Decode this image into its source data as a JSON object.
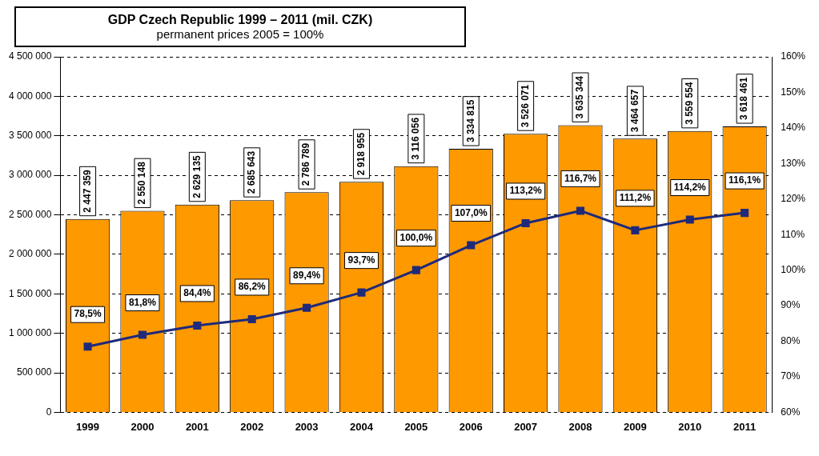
{
  "chart_data": {
    "type": "bar",
    "title": "GDP Czech Republic 1999 – 2011 (mil. CZK)",
    "subtitle": "permanent prices 2005 = 100%",
    "categories": [
      "1999",
      "2000",
      "2001",
      "2002",
      "2003",
      "2004",
      "2005",
      "2006",
      "2007",
      "2008",
      "2009",
      "2010",
      "2011"
    ],
    "series": [
      {
        "color": "#ff9900",
        "values": [
          2447359,
          2550148,
          2629135,
          2685643,
          2786789,
          2918955,
          3116056,
          3334815,
          3526071,
          3635344,
          3464657,
          3559554,
          3618461
        ],
        "value_labels": [
          "2 447 359",
          "2 550 148",
          "2 629 135",
          "2 685 643",
          "2 786 789",
          "2 918 955",
          "3 116 056",
          "3 334 815",
          "3 526 071",
          "3 635 344",
          "3 464 657",
          "3 559 554",
          "3 618 461"
        ]
      },
      {
        "type": "line",
        "axis": "y2",
        "color": "#1f2a7a",
        "marker": "square",
        "values": [
          78.5,
          81.8,
          84.4,
          86.2,
          89.4,
          93.7,
          100.0,
          107.0,
          113.2,
          116.7,
          111.2,
          114.2,
          116.1
        ],
        "value_labels": [
          "78,5%",
          "81,8%",
          "84,4%",
          "86,2%",
          "89,4%",
          "93,7%",
          "100,0%",
          "107,0%",
          "113,2%",
          "116,7%",
          "111,2%",
          "114,2%",
          "116,1%"
        ]
      }
    ],
    "ylim": [
      0,
      4500000
    ],
    "yticks": [
      {
        "value": 0,
        "label": "0"
      },
      {
        "value": 500000,
        "label": "500 000"
      },
      {
        "value": 1000000,
        "label": "1 000 000"
      },
      {
        "value": 1500000,
        "label": "1 500 000"
      },
      {
        "value": 2000000,
        "label": "2 000 000"
      },
      {
        "value": 2500000,
        "label": "2 500 000"
      },
      {
        "value": 3000000,
        "label": "3 000 000"
      },
      {
        "value": 3500000,
        "label": "3 500 000"
      },
      {
        "value": 4000000,
        "label": "4 000 000"
      },
      {
        "value": 4500000,
        "label": "4 500 000"
      }
    ],
    "y2lim": [
      60,
      160
    ],
    "y2ticks": [
      {
        "value": 60,
        "label": "60%"
      },
      {
        "value": 70,
        "label": "70%"
      },
      {
        "value": 80,
        "label": "80%"
      },
      {
        "value": 90,
        "label": "90%"
      },
      {
        "value": 100,
        "label": "100%"
      },
      {
        "value": 110,
        "label": "110%"
      },
      {
        "value": 120,
        "label": "120%"
      },
      {
        "value": 130,
        "label": "130%"
      },
      {
        "value": 140,
        "label": "140%"
      },
      {
        "value": 150,
        "label": "150%"
      },
      {
        "value": 160,
        "label": "160%"
      }
    ],
    "grid": "y",
    "legend": false
  }
}
